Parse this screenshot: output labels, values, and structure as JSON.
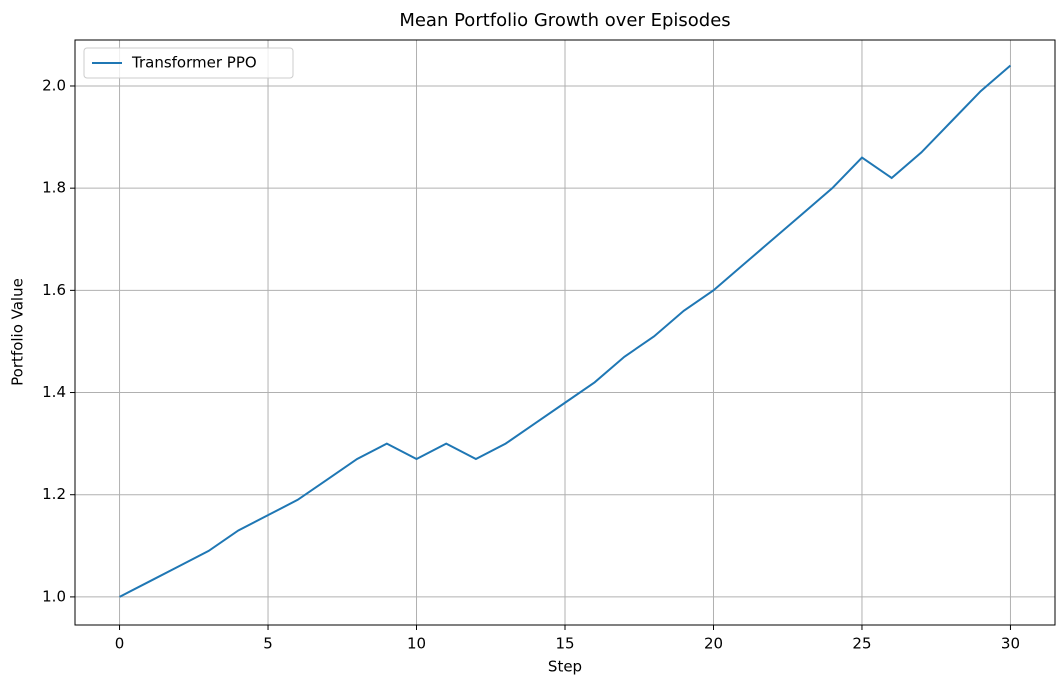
{
  "chart_data": {
    "type": "line",
    "title": "Mean Portfolio Growth over Episodes",
    "x_label": "Step",
    "y_label": "Portfolio Value",
    "x": [
      0,
      1,
      2,
      3,
      4,
      5,
      6,
      7,
      8,
      9,
      10,
      11,
      12,
      13,
      14,
      15,
      16,
      17,
      18,
      19,
      20,
      21,
      22,
      23,
      24,
      25,
      26,
      27,
      28,
      29,
      30
    ],
    "series": [
      {
        "name": "Transformer PPO",
        "color": "#1f77b4",
        "values": [
          1.0,
          1.03,
          1.06,
          1.09,
          1.13,
          1.16,
          1.19,
          1.23,
          1.27,
          1.3,
          1.27,
          1.3,
          1.27,
          1.3,
          1.34,
          1.38,
          1.42,
          1.47,
          1.51,
          1.56,
          1.6,
          1.65,
          1.7,
          1.75,
          1.8,
          1.86,
          1.82,
          1.87,
          1.93,
          1.99,
          2.04
        ]
      }
    ],
    "xlim": [
      -1.5,
      31.5
    ],
    "xticks": [
      0,
      5,
      10,
      15,
      20,
      25,
      30
    ],
    "ylim": [
      0.945,
      2.09
    ],
    "yticks": [
      {
        "value": 1,
        "label": "1.0"
      },
      {
        "value": 1.2,
        "label": "1.2"
      },
      {
        "value": 1.4,
        "label": "1.4"
      },
      {
        "value": 1.6,
        "label": "1.6"
      },
      {
        "value": 1.8,
        "label": "1.8"
      },
      {
        "value": 2,
        "label": "2.0"
      }
    ],
    "grid": true,
    "legend": "upper left"
  }
}
